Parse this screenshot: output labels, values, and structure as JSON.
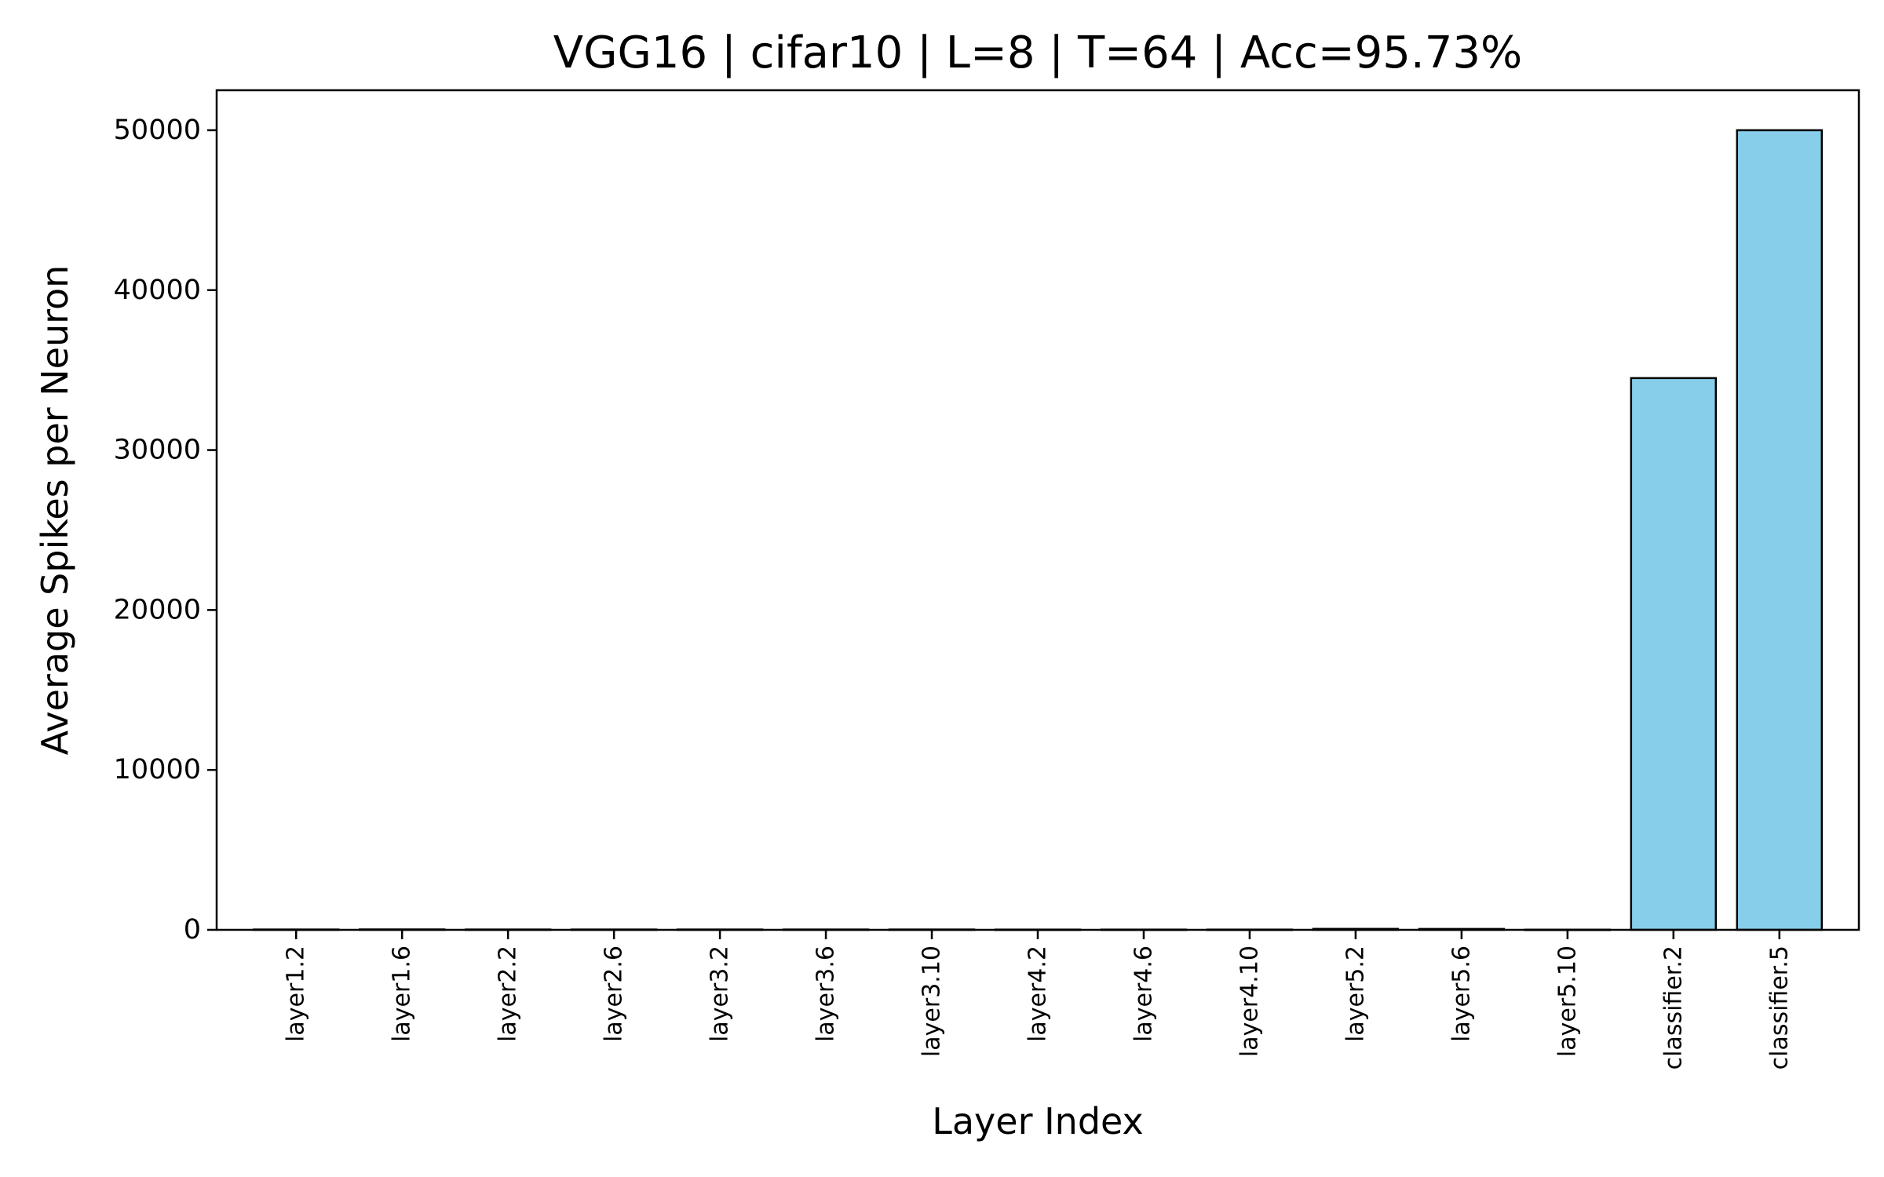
{
  "chart_data": {
    "type": "bar",
    "title": "VGG16 | cifar10 | L=8 | T=64 | Acc=95.73%",
    "xlabel": "Layer Index",
    "ylabel": "Average Spikes per Neuron",
    "categories": [
      "layer1.2",
      "layer1.6",
      "layer2.2",
      "layer2.6",
      "layer3.2",
      "layer3.6",
      "layer3.10",
      "layer4.2",
      "layer4.6",
      "layer4.10",
      "layer5.2",
      "layer5.6",
      "layer5.10",
      "classifier.2",
      "classifier.5"
    ],
    "values": [
      20,
      25,
      20,
      20,
      20,
      20,
      20,
      15,
      15,
      15,
      60,
      55,
      10,
      34500,
      50000
    ],
    "ylim": [
      0,
      52500
    ],
    "yticks": [
      0,
      10000,
      20000,
      30000,
      40000,
      50000
    ],
    "bar_color": "#87ceeb",
    "edge_color": "#000000",
    "grid": false
  }
}
